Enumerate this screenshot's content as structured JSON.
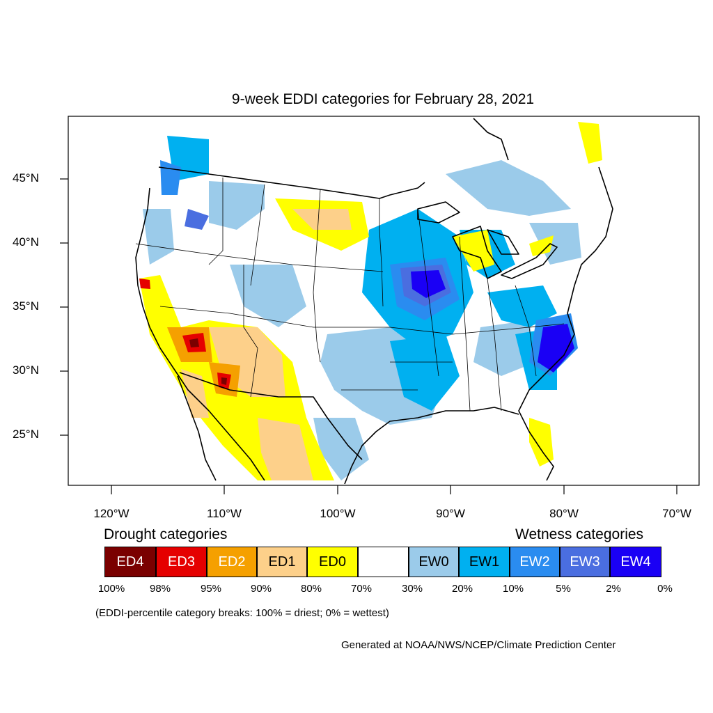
{
  "title": "9-week EDDI categories for February 28, 2021",
  "lat_ticks": [
    "45°N",
    "40°N",
    "35°N",
    "30°N",
    "25°N"
  ],
  "lon_ticks": [
    "120°W",
    "110°W",
    "100°W",
    "90°W",
    "80°W",
    "70°W"
  ],
  "legend": {
    "drought_heading": "Drought categories",
    "wetness_heading": "Wetness categories",
    "categories": [
      {
        "label": "ED4",
        "color": "#7a0000",
        "text_color": "#ffffff"
      },
      {
        "label": "ED3",
        "color": "#e50000",
        "text_color": "#ffffff"
      },
      {
        "label": "ED2",
        "color": "#f5a000",
        "text_color": "#ffffff"
      },
      {
        "label": "ED1",
        "color": "#fdd08a",
        "text_color": "#000000"
      },
      {
        "label": "ED0",
        "color": "#ffff00",
        "text_color": "#000000"
      },
      {
        "label": "",
        "color": "#ffffff",
        "text_color": "#000000"
      },
      {
        "label": "EW0",
        "color": "#9bcbea",
        "text_color": "#000000"
      },
      {
        "label": "EW1",
        "color": "#00b0f0",
        "text_color": "#000000"
      },
      {
        "label": "EW2",
        "color": "#2a8cf0",
        "text_color": "#ffffff"
      },
      {
        "label": "EW3",
        "color": "#4a6ee0",
        "text_color": "#ffffff"
      },
      {
        "label": "EW4",
        "color": "#1a00f5",
        "text_color": "#ffffff"
      }
    ],
    "percentiles": [
      "100%",
      "98%",
      "95%",
      "90%",
      "80%",
      "70%",
      "30%",
      "20%",
      "10%",
      "5%",
      "2%",
      "0%"
    ]
  },
  "note": "(EDDI-percentile category breaks: 100% = driest; 0% = wettest)",
  "credit": "Generated at NOAA/NWS/NCEP/Climate Prediction Center"
}
